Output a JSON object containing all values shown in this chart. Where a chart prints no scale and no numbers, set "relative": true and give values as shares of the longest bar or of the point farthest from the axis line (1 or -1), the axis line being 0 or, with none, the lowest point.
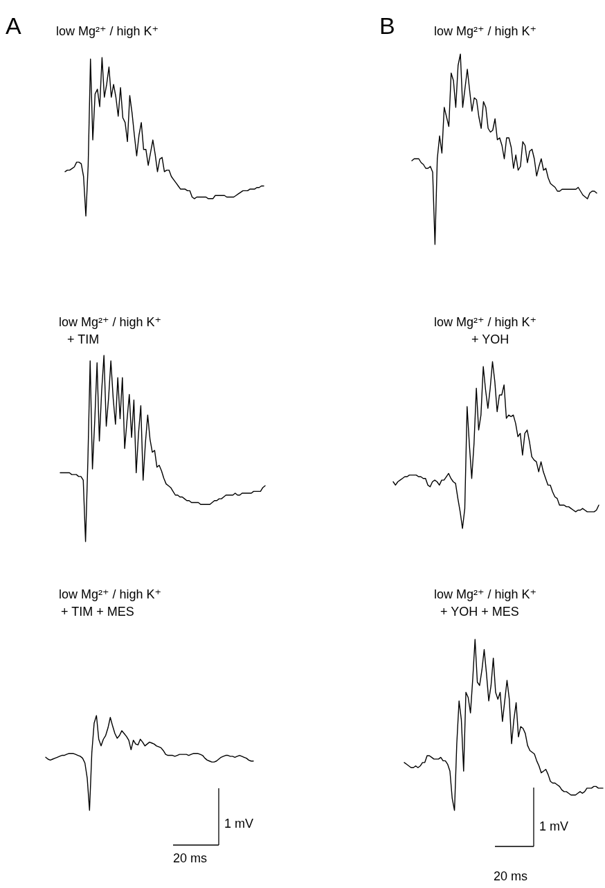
{
  "chart_data": [
    {
      "type": "line",
      "title": "low Mg²⁺ / high K⁺",
      "annotations": [
        "A"
      ],
      "relative": true,
      "categories": [
        null,
        null,
        null,
        null,
        null,
        null,
        null,
        null,
        null,
        null,
        null,
        null,
        null,
        null,
        null,
        null,
        null,
        null,
        null,
        null,
        null,
        null,
        null,
        null,
        null,
        null,
        null,
        null,
        null,
        null,
        null,
        null,
        null,
        null,
        null,
        null,
        null,
        null,
        null,
        null,
        null,
        null,
        null,
        null,
        null,
        null,
        null,
        null,
        null,
        null,
        null,
        null,
        null,
        null,
        null,
        null,
        null,
        null,
        null,
        null,
        null,
        null,
        null,
        null,
        null,
        null,
        null,
        null,
        null,
        null,
        null,
        null,
        null,
        null,
        null,
        null,
        null,
        null,
        null,
        null,
        null,
        null,
        null,
        null,
        null,
        null,
        null
      ],
      "series": [
        {
          "color": "#000000",
          "values": [
            0.28,
            0.29,
            0.29,
            0.3,
            0.31,
            0.34,
            0.34,
            0.33,
            0.25,
            0.0,
            0.32,
            0.99,
            0.48,
            0.77,
            0.8,
            0.69,
            1.0,
            0.75,
            0.83,
            0.94,
            0.75,
            0.83,
            0.75,
            0.63,
            0.81,
            0.62,
            0.59,
            0.47,
            0.76,
            0.65,
            0.51,
            0.38,
            0.51,
            0.59,
            0.42,
            0.42,
            0.32,
            0.4,
            0.48,
            0.39,
            0.28,
            0.36,
            0.37,
            0.28,
            0.29,
            0.29,
            0.25,
            0.23,
            0.21,
            0.19,
            0.17,
            0.17,
            0.17,
            0.16,
            0.16,
            0.12,
            0.11,
            0.12,
            0.12,
            0.12,
            0.12,
            0.12,
            0.11,
            0.11,
            0.11,
            0.13,
            0.13,
            0.13,
            0.13,
            0.13,
            0.12,
            0.12,
            0.12,
            0.12,
            0.13,
            0.14,
            0.15,
            0.16,
            0.16,
            0.16,
            0.17,
            0.17,
            0.17,
            0.18,
            0.18,
            0.19,
            0.19
          ]
        }
      ]
    },
    {
      "type": "line",
      "title": "low Mg²⁺ / high K⁺",
      "annotations": [
        "B"
      ],
      "relative": true,
      "categories": [
        null,
        null,
        null,
        null,
        null,
        null,
        null,
        null,
        null,
        null,
        null,
        null,
        null,
        null,
        null,
        null,
        null,
        null,
        null,
        null,
        null,
        null,
        null,
        null,
        null,
        null,
        null,
        null,
        null,
        null,
        null,
        null,
        null,
        null,
        null,
        null,
        null,
        null,
        null,
        null,
        null,
        null,
        null,
        null,
        null,
        null,
        null,
        null,
        null,
        null,
        null,
        null,
        null,
        null,
        null,
        null,
        null,
        null,
        null,
        null,
        null,
        null,
        null,
        null,
        null,
        null,
        null,
        null,
        null,
        null,
        null,
        null,
        null,
        null,
        null,
        null,
        null,
        null,
        null,
        null,
        null
      ],
      "series": [
        {
          "color": "#000000",
          "values": [
            0.44,
            0.45,
            0.45,
            0.45,
            0.43,
            0.42,
            0.4,
            0.4,
            0.41,
            0.38,
            0.0,
            0.45,
            0.57,
            0.48,
            0.72,
            0.67,
            0.62,
            0.9,
            0.86,
            0.72,
            0.94,
            1.0,
            0.72,
            0.82,
            0.92,
            0.81,
            0.7,
            0.77,
            0.76,
            0.67,
            0.61,
            0.75,
            0.72,
            0.61,
            0.59,
            0.6,
            0.66,
            0.55,
            0.56,
            0.52,
            0.45,
            0.56,
            0.56,
            0.51,
            0.4,
            0.47,
            0.39,
            0.41,
            0.54,
            0.52,
            0.43,
            0.49,
            0.5,
            0.45,
            0.36,
            0.41,
            0.45,
            0.39,
            0.4,
            0.35,
            0.32,
            0.31,
            0.3,
            0.28,
            0.28,
            0.29,
            0.29,
            0.29,
            0.29,
            0.29,
            0.29,
            0.29,
            0.3,
            0.28,
            0.26,
            0.25,
            0.24,
            0.27,
            0.28,
            0.28,
            0.27
          ]
        }
      ]
    },
    {
      "type": "line",
      "title": "low Mg²⁺ / high K⁺",
      "subtitle": "+ TIM",
      "relative": true,
      "categories": [
        null,
        null,
        null,
        null,
        null,
        null,
        null,
        null,
        null,
        null,
        null,
        null,
        null,
        null,
        null,
        null,
        null,
        null,
        null,
        null,
        null,
        null,
        null,
        null,
        null,
        null,
        null,
        null,
        null,
        null,
        null,
        null,
        null,
        null,
        null,
        null,
        null,
        null,
        null,
        null,
        null,
        null,
        null,
        null,
        null,
        null,
        null,
        null,
        null,
        null,
        null,
        null,
        null,
        null,
        null,
        null,
        null,
        null,
        null,
        null,
        null,
        null,
        null,
        null,
        null,
        null,
        null,
        null,
        null,
        null,
        null,
        null,
        null,
        null,
        null,
        null,
        null,
        null,
        null,
        null,
        null,
        null,
        null,
        null,
        null,
        null,
        null,
        null,
        null,
        null
      ],
      "series": [
        {
          "color": "#000000",
          "values": [
            0.37,
            0.37,
            0.37,
            0.37,
            0.37,
            0.36,
            0.36,
            0.36,
            0.35,
            0.35,
            0.33,
            0.0,
            0.43,
            0.97,
            0.39,
            0.65,
            0.96,
            0.54,
            0.81,
            1.0,
            0.62,
            0.77,
            0.97,
            0.77,
            0.63,
            0.88,
            0.66,
            0.88,
            0.5,
            0.65,
            0.79,
            0.56,
            0.76,
            0.37,
            0.58,
            0.73,
            0.33,
            0.53,
            0.68,
            0.55,
            0.48,
            0.49,
            0.4,
            0.41,
            0.38,
            0.34,
            0.31,
            0.3,
            0.29,
            0.27,
            0.25,
            0.25,
            0.24,
            0.24,
            0.23,
            0.22,
            0.22,
            0.21,
            0.21,
            0.21,
            0.21,
            0.2,
            0.2,
            0.2,
            0.2,
            0.2,
            0.21,
            0.22,
            0.22,
            0.23,
            0.23,
            0.24,
            0.25,
            0.25,
            0.25,
            0.25,
            0.26,
            0.25,
            0.25,
            0.26,
            0.26,
            0.26,
            0.26,
            0.26,
            0.27,
            0.27,
            0.27,
            0.27,
            0.29,
            0.3
          ]
        }
      ]
    },
    {
      "type": "line",
      "title": "low Mg²⁺ / high K⁺",
      "subtitle": "+ YOH",
      "relative": true,
      "categories": [
        null,
        null,
        null,
        null,
        null,
        null,
        null,
        null,
        null,
        null,
        null,
        null,
        null,
        null,
        null,
        null,
        null,
        null,
        null,
        null,
        null,
        null,
        null,
        null,
        null,
        null,
        null,
        null,
        null,
        null,
        null,
        null,
        null,
        null,
        null,
        null,
        null,
        null,
        null,
        null,
        null,
        null,
        null,
        null,
        null,
        null,
        null,
        null,
        null,
        null,
        null,
        null,
        null,
        null,
        null,
        null,
        null,
        null,
        null,
        null,
        null,
        null,
        null,
        null,
        null,
        null,
        null,
        null,
        null,
        null,
        null,
        null,
        null,
        null,
        null,
        null,
        null,
        null,
        null,
        null,
        null,
        null,
        null,
        null,
        null,
        null,
        null,
        null,
        null,
        null
      ],
      "series": [
        {
          "color": "#000000",
          "values": [
            0.28,
            0.26,
            0.28,
            0.29,
            0.3,
            0.31,
            0.31,
            0.32,
            0.32,
            0.32,
            0.32,
            0.31,
            0.31,
            0.3,
            0.3,
            0.26,
            0.25,
            0.28,
            0.29,
            0.28,
            0.26,
            0.29,
            0.29,
            0.31,
            0.33,
            0.3,
            0.28,
            0.27,
            0.18,
            0.1,
            0.0,
            0.12,
            0.73,
            0.5,
            0.3,
            0.51,
            0.84,
            0.59,
            0.68,
            0.97,
            0.83,
            0.72,
            0.84,
            1.0,
            0.88,
            0.7,
            0.8,
            0.8,
            0.86,
            0.66,
            0.68,
            0.67,
            0.68,
            0.63,
            0.55,
            0.57,
            0.44,
            0.57,
            0.59,
            0.52,
            0.43,
            0.41,
            0.4,
            0.34,
            0.4,
            0.34,
            0.3,
            0.26,
            0.26,
            0.22,
            0.19,
            0.18,
            0.14,
            0.14,
            0.14,
            0.13,
            0.13,
            0.12,
            0.11,
            0.1,
            0.11,
            0.11,
            0.12,
            0.11,
            0.1,
            0.1,
            0.1,
            0.1,
            0.11,
            0.14
          ]
        }
      ]
    },
    {
      "type": "line",
      "title": "low Mg²⁺ / high K⁺",
      "subtitle": "+ TIM + MES",
      "annotations": [
        "1 mV",
        "20 ms"
      ],
      "relative": true,
      "categories": [
        null,
        null,
        null,
        null,
        null,
        null,
        null,
        null,
        null,
        null,
        null,
        null,
        null,
        null,
        null,
        null,
        null,
        null,
        null,
        null,
        null,
        null,
        null,
        null,
        null,
        null,
        null,
        null,
        null,
        null,
        null,
        null,
        null,
        null,
        null,
        null,
        null,
        null,
        null,
        null,
        null,
        null,
        null,
        null,
        null,
        null,
        null,
        null,
        null,
        null,
        null,
        null,
        null,
        null,
        null,
        null,
        null,
        null,
        null,
        null,
        null,
        null,
        null,
        null,
        null,
        null,
        null,
        null,
        null,
        null,
        null,
        null,
        null,
        null,
        null,
        null,
        null,
        null,
        null,
        null,
        null,
        null,
        null,
        null,
        null,
        null,
        null,
        null,
        null,
        null,
        null
      ],
      "series": [
        {
          "color": "#000000",
          "values": [
            0.56,
            0.54,
            0.53,
            0.54,
            0.55,
            0.56,
            0.57,
            0.58,
            0.58,
            0.59,
            0.6,
            0.6,
            0.6,
            0.59,
            0.58,
            0.57,
            0.55,
            0.5,
            0.34,
            0.0,
            0.61,
            0.92,
            1.0,
            0.75,
            0.68,
            0.75,
            0.79,
            0.87,
            0.98,
            0.89,
            0.81,
            0.76,
            0.79,
            0.84,
            0.81,
            0.78,
            0.74,
            0.64,
            0.74,
            0.7,
            0.69,
            0.75,
            0.72,
            0.68,
            0.7,
            0.72,
            0.71,
            0.7,
            0.68,
            0.67,
            0.66,
            0.63,
            0.59,
            0.58,
            0.58,
            0.58,
            0.57,
            0.58,
            0.59,
            0.59,
            0.59,
            0.59,
            0.58,
            0.59,
            0.6,
            0.6,
            0.6,
            0.59,
            0.58,
            0.55,
            0.53,
            0.52,
            0.51,
            0.51,
            0.52,
            0.54,
            0.56,
            0.57,
            0.58,
            0.58,
            0.57,
            0.57,
            0.56,
            0.57,
            0.58,
            0.57,
            0.56,
            0.55,
            0.53,
            0.52,
            0.52
          ]
        }
      ]
    },
    {
      "type": "line",
      "title": "low Mg²⁺ / high K⁺",
      "subtitle": "+ YOH + MES",
      "annotations": [
        "1 mV",
        "20 ms"
      ],
      "relative": true,
      "categories": [
        null,
        null,
        null,
        null,
        null,
        null,
        null,
        null,
        null,
        null,
        null,
        null,
        null,
        null,
        null,
        null,
        null,
        null,
        null,
        null,
        null,
        null,
        null,
        null,
        null,
        null,
        null,
        null,
        null,
        null,
        null,
        null,
        null,
        null,
        null,
        null,
        null,
        null,
        null,
        null,
        null,
        null,
        null,
        null,
        null,
        null,
        null,
        null,
        null,
        null,
        null,
        null,
        null,
        null,
        null,
        null,
        null,
        null,
        null,
        null,
        null,
        null,
        null,
        null,
        null,
        null,
        null,
        null,
        null,
        null,
        null,
        null,
        null,
        null,
        null,
        null,
        null,
        null,
        null,
        null,
        null,
        null,
        null,
        null,
        null,
        null,
        null,
        null
      ],
      "series": [
        {
          "color": "#000000",
          "values": [
            0.28,
            0.27,
            0.26,
            0.25,
            0.25,
            0.26,
            0.25,
            0.26,
            0.28,
            0.28,
            0.32,
            0.32,
            0.31,
            0.3,
            0.3,
            0.3,
            0.31,
            0.29,
            0.29,
            0.27,
            0.23,
            0.07,
            0.0,
            0.39,
            0.64,
            0.53,
            0.23,
            0.69,
            0.66,
            0.57,
            0.77,
            1.0,
            0.75,
            0.73,
            0.82,
            0.94,
            0.8,
            0.64,
            0.73,
            0.89,
            0.69,
            0.65,
            0.69,
            0.52,
            0.64,
            0.76,
            0.65,
            0.39,
            0.53,
            0.63,
            0.43,
            0.49,
            0.48,
            0.45,
            0.38,
            0.35,
            0.34,
            0.33,
            0.29,
            0.26,
            0.22,
            0.23,
            0.24,
            0.21,
            0.17,
            0.16,
            0.16,
            0.15,
            0.14,
            0.12,
            0.11,
            0.11,
            0.1,
            0.09,
            0.09,
            0.09,
            0.1,
            0.11,
            0.1,
            0.11,
            0.13,
            0.13,
            0.13,
            0.14,
            0.14,
            0.13,
            0.13,
            0.13
          ]
        }
      ]
    }
  ]
}
